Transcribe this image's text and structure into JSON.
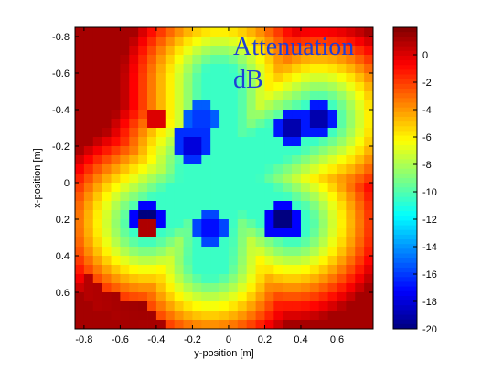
{
  "chart_data": {
    "type": "heatmap",
    "title": "",
    "annotation": [
      "Attenuation",
      "dB"
    ],
    "xlabel": "y-position [m]",
    "ylabel": "x-position [m]",
    "xlim": [
      -0.85,
      0.8
    ],
    "ylim": [
      -0.85,
      0.8
    ],
    "y_axis_reversed": true,
    "x_ticks": [
      "-0.8",
      "-0.6",
      "-0.4",
      "-0.2",
      "0",
      "0.2",
      "0.4",
      "0.6"
    ],
    "y_ticks": [
      "-0.8",
      "-0.6",
      "-0.4",
      "-0.2",
      "0",
      "0.2",
      "0.4",
      "0.6"
    ],
    "colorbar": {
      "min": -20,
      "max": 2,
      "ticks": [
        "0",
        "-2",
        "-4",
        "-6",
        "-8",
        "-10",
        "-12",
        "-14",
        "-16",
        "-18",
        "-20"
      ],
      "colormap": "jet"
    },
    "grid": {
      "nx": 33,
      "ny": 33,
      "x_start": -0.85,
      "x_end": 0.8,
      "y_start": -0.85,
      "y_end": 0.8,
      "background_level_db": -10.5,
      "star_center": [
        -0.05,
        -0.05
      ],
      "star_arms": [
        {
          "toward": [
            -0.45,
            0.22
          ]
        },
        {
          "toward": [
            -0.1,
            0.42
          ]
        },
        {
          "toward": [
            0.35,
            0.22
          ]
        },
        {
          "toward": [
            0.5,
            -0.35
          ]
        },
        {
          "toward": [
            -0.05,
            -0.55
          ]
        }
      ],
      "deep_spots_db": [
        {
          "at": [
            -0.45,
            0.2
          ],
          "value": -20
        },
        {
          "at": [
            0.3,
            0.22
          ],
          "value": -20
        },
        {
          "at": [
            0.35,
            -0.3
          ],
          "value": -19
        },
        {
          "at": [
            0.5,
            -0.35
          ],
          "value": -19
        },
        {
          "at": [
            -0.2,
            -0.22
          ],
          "value": -18
        },
        {
          "at": [
            -0.1,
            0.25
          ],
          "value": -17
        },
        {
          "at": [
            -0.15,
            -0.35
          ],
          "value": -16
        }
      ],
      "hot_spots_db": [
        {
          "at": [
            -0.45,
            0.25
          ],
          "value": 1
        },
        {
          "at": [
            -0.4,
            -0.35
          ],
          "value": 0
        }
      ]
    }
  }
}
